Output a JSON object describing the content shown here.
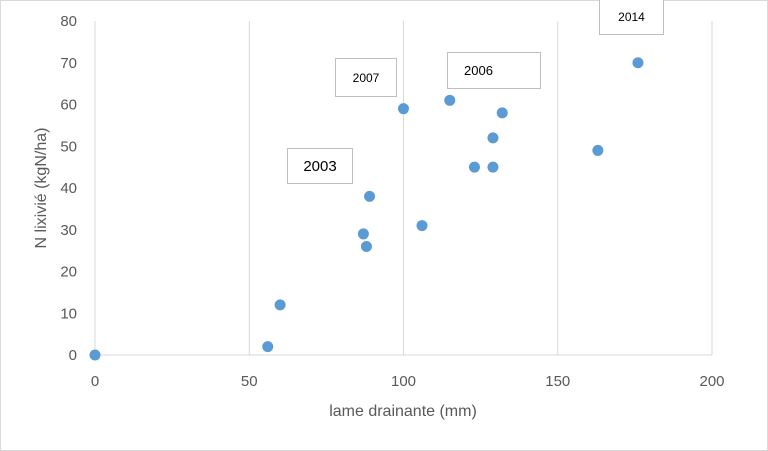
{
  "chart_data": {
    "type": "scatter",
    "xlabel": "lame drainante (mm)",
    "ylabel": "N lixivié (kgN/ha)",
    "xlim": [
      0,
      200
    ],
    "ylim": [
      0,
      80
    ],
    "xticks": [
      0,
      50,
      100,
      150,
      200
    ],
    "yticks": [
      0,
      10,
      20,
      30,
      40,
      50,
      60,
      70,
      80
    ],
    "grid": {
      "vertical": true,
      "horizontal": false
    },
    "marker_color": "#5b9bd5",
    "points": [
      {
        "x": 0,
        "y": 0
      },
      {
        "x": 56,
        "y": 2
      },
      {
        "x": 60,
        "y": 12
      },
      {
        "x": 87,
        "y": 29
      },
      {
        "x": 88,
        "y": 26
      },
      {
        "x": 89,
        "y": 38
      },
      {
        "x": 100,
        "y": 59
      },
      {
        "x": 106,
        "y": 31
      },
      {
        "x": 115,
        "y": 61
      },
      {
        "x": 123,
        "y": 45
      },
      {
        "x": 129,
        "y": 45
      },
      {
        "x": 129,
        "y": 52
      },
      {
        "x": 132,
        "y": 58
      },
      {
        "x": 163,
        "y": 49
      },
      {
        "x": 176,
        "y": 70
      }
    ],
    "annotations": [
      {
        "label": "2003"
      },
      {
        "label": "2007"
      },
      {
        "label": "2006"
      },
      {
        "label": "2014"
      }
    ]
  }
}
